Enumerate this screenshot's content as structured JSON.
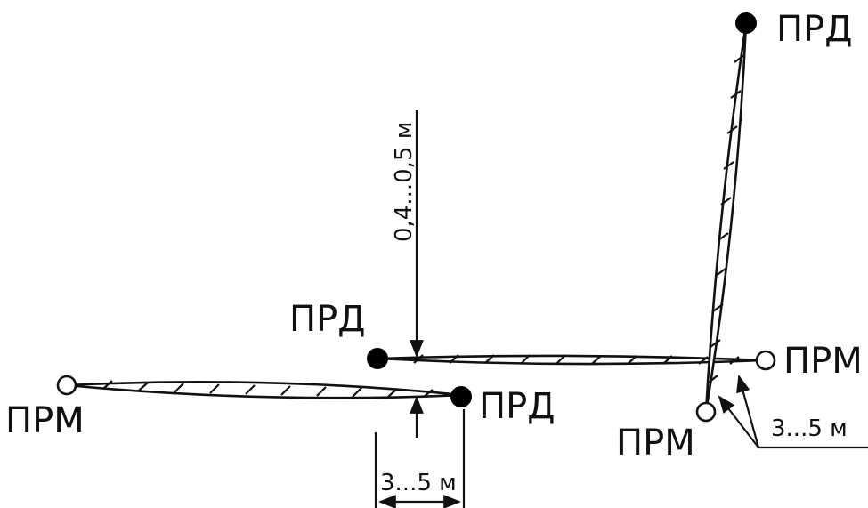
{
  "labels": {
    "tx": "ПРД",
    "rx": "ПРМ"
  },
  "dimensions": {
    "height_range": "0,4...0,5 м",
    "spacing_bottom": "3...5 м",
    "spacing_right": "3...5 м"
  },
  "colors": {
    "ink": "#111111",
    "background": "#ffffff"
  }
}
